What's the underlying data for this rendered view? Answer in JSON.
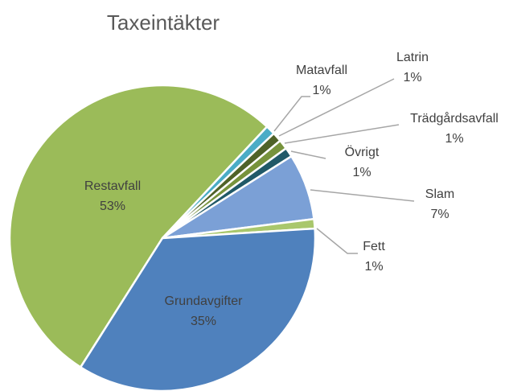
{
  "chart_data": {
    "type": "pie",
    "title": "Taxeintäkter",
    "categories": [
      "Restavfall",
      "Matavfall",
      "Latrin",
      "Trädgårdsavfall",
      "Övrigt",
      "Slam",
      "Fett",
      "Grundavgifter"
    ],
    "values": [
      53,
      1,
      1,
      1,
      1,
      7,
      1,
      35
    ],
    "value_labels": [
      "53%",
      "1%",
      "1%",
      "1%",
      "1%",
      "7%",
      "1%",
      "35%"
    ],
    "colors": [
      "#9bbb59",
      "#4bacc6",
      "#4f6228",
      "#77933c",
      "#215968",
      "#7ba0d6",
      "#a9c76c",
      "#4f81bd"
    ]
  }
}
